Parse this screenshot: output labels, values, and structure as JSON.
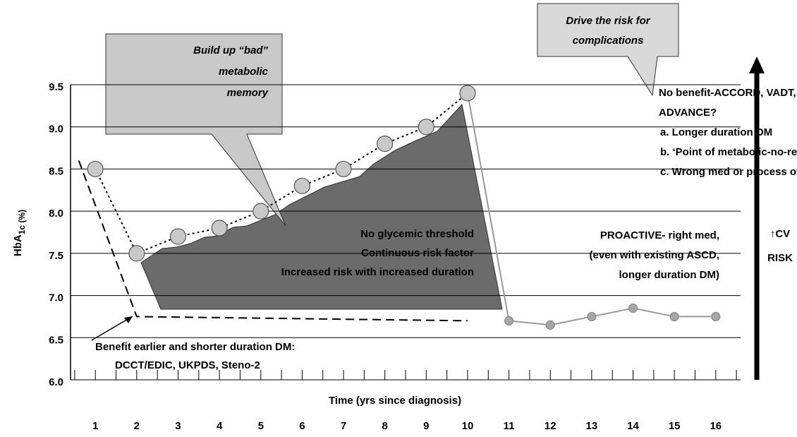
{
  "chart_data": {
    "type": "line",
    "y_label": {
      "main": "HbA",
      "sub": "1c (%)"
    },
    "x_label": "Time (yrs since diagnosis)",
    "xlim": [
      0.4,
      16.6
    ],
    "xticks": [
      1,
      2,
      3,
      4,
      5,
      6,
      7,
      8,
      9,
      10,
      11,
      12,
      13,
      14,
      15,
      16
    ],
    "ylim": [
      6.0,
      9.5
    ],
    "yticks": [
      {
        "value": 6.0,
        "label": "6.0"
      },
      {
        "value": 6.5,
        "label": "6.5"
      },
      {
        "value": 7.0,
        "label": "7.0"
      },
      {
        "value": 7.5,
        "label": "7.5"
      },
      {
        "value": 8.0,
        "label": "8.0"
      },
      {
        "value": 8.5,
        "label": "8.5"
      },
      {
        "value": 9.0,
        "label": "9.0"
      },
      {
        "value": 9.5,
        "label": "9.5"
      }
    ],
    "grid": true,
    "series": [
      {
        "color": "#c8c8c8",
        "x": [
          1,
          2,
          3,
          4,
          5,
          6,
          7,
          8,
          9,
          10
        ],
        "values": [
          8.5,
          7.5,
          7.7,
          7.8,
          8.0,
          8.3,
          8.5,
          8.8,
          9.0,
          9.4
        ]
      },
      {
        "color": "#a6a6a6",
        "x": [
          11,
          12,
          13,
          14,
          15,
          16
        ],
        "values": [
          6.7,
          6.65,
          6.75,
          6.85,
          6.75,
          6.75
        ]
      },
      {
        "color": "#000000",
        "x": [
          0.6,
          2,
          10
        ],
        "values": [
          8.6,
          6.75,
          6.7
        ]
      }
    ],
    "annotations": {
      "memory_callout": [
        "Build up “bad”",
        "metabolic",
        "memory"
      ],
      "risk_callout": [
        "Drive the risk for",
        "complications"
      ],
      "no_benefit": [
        "No benefit-ACCORD, VADT,",
        "ADVANCE?",
        "a.  Longer duration DM",
        "b.  ‘Point of metabolic-no-return’",
        "c.  Wrong med or process of care"
      ],
      "area_text": [
        "No glycemic threshold",
        "Continuous risk factor",
        "Increased risk with increased duration"
      ],
      "proactive": [
        "PROACTIVE- right med,",
        "(even with existing ASCD,",
        "longer duration DM)"
      ],
      "benefit": [
        "Benefit earlier and shorter duration DM:",
        "DCCT/EDIC, UKPDS, Steno-2"
      ],
      "cv_risk": [
        "↑CV",
        "RISK"
      ]
    }
  }
}
